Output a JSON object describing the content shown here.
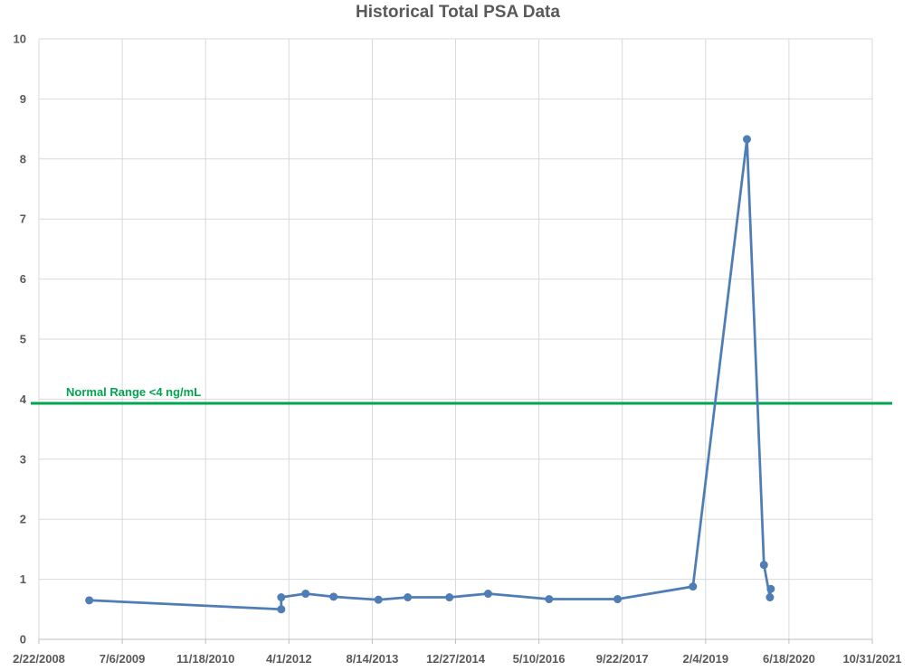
{
  "chart_data": {
    "type": "scatter",
    "title": "Historical Total PSA Data",
    "xlabel": "",
    "ylabel": "",
    "x_axis_kind": "date",
    "xlim": [
      "2/22/2008",
      "10/31/2021"
    ],
    "ylim": [
      0,
      10
    ],
    "x_ticks": [
      "2/22/2008",
      "7/6/2009",
      "11/18/2010",
      "4/1/2012",
      "8/14/2013",
      "12/27/2014",
      "5/10/2016",
      "9/22/2017",
      "2/4/2019",
      "6/18/2020",
      "10/31/2021"
    ],
    "y_ticks": [
      0,
      1,
      2,
      3,
      4,
      5,
      6,
      7,
      8,
      9,
      10
    ],
    "grid": true,
    "legend": "none",
    "series": [
      {
        "color": "#4f7db6",
        "lines": "straight with markers",
        "points": [
          {
            "x": "2008-12-20",
            "y": 0.65
          },
          {
            "x": "2012-02-15",
            "y": 0.5
          },
          {
            "x": "2012-02-15",
            "y": 0.7
          },
          {
            "x": "2012-07-10",
            "y": 0.76
          },
          {
            "x": "2012-12-25",
            "y": 0.71
          },
          {
            "x": "2013-09-20",
            "y": 0.66
          },
          {
            "x": "2014-03-15",
            "y": 0.7
          },
          {
            "x": "2014-11-20",
            "y": 0.7
          },
          {
            "x": "2015-07-10",
            "y": 0.76
          },
          {
            "x": "2016-07-10",
            "y": 0.67
          },
          {
            "x": "2017-08-25",
            "y": 0.67
          },
          {
            "x": "2018-11-20",
            "y": 0.88
          },
          {
            "x": "2019-10-10",
            "y": 8.33
          },
          {
            "x": "2020-01-20",
            "y": 1.24
          },
          {
            "x": "2020-02-25",
            "y": 0.7
          },
          {
            "x": "2020-03-01",
            "y": 0.84
          }
        ]
      }
    ],
    "reference_lines": [
      {
        "y": 3.93,
        "label": "Normal Range <4 ng/mL",
        "color": "#00a550"
      }
    ]
  }
}
